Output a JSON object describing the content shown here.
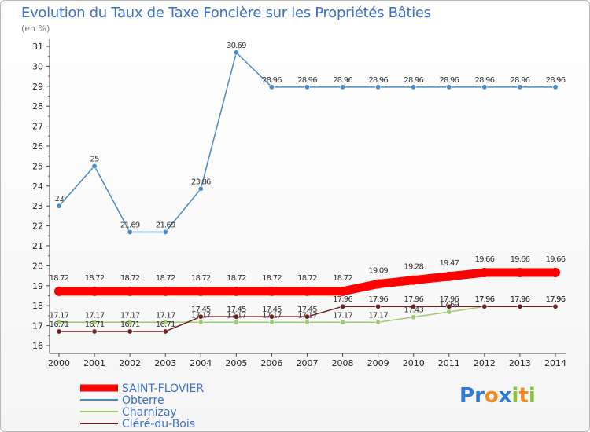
{
  "title": "Evolution du Taux de Taxe Foncière sur les Propriétés Bâties",
  "subtitle": "(en %)",
  "logo_letters": [
    "P",
    "r",
    "o",
    "x",
    "i",
    "t",
    "i"
  ],
  "logo_colors": [
    "#2f7ad1",
    "#2f7ad1",
    "#f08a24",
    "#2f7ad1",
    "#8ac43f",
    "#f08a24",
    "#8ac43f"
  ],
  "chart_data": {
    "type": "line",
    "title": "Evolution du Taux de Taxe Foncière sur les Propriétés Bâties",
    "ylabel": "(en %)",
    "xlabel": "",
    "x": [
      "2000",
      "2001",
      "2002",
      "2003",
      "2004",
      "2005",
      "2006",
      "2007",
      "2008",
      "2009",
      "2010",
      "2011",
      "2012",
      "2013",
      "2014"
    ],
    "ylim": [
      16,
      31
    ],
    "yticks": [
      "16",
      "17",
      "18",
      "19",
      "20",
      "21",
      "22",
      "23",
      "24",
      "25",
      "26",
      "27",
      "28",
      "29",
      "30",
      "31"
    ],
    "series": [
      {
        "name": "SAINT-FLOVIER",
        "color": "#ff0000",
        "label_color": "#333333",
        "style": "thick",
        "values": [
          18.72,
          18.72,
          18.72,
          18.72,
          18.72,
          18.72,
          18.72,
          18.72,
          18.72,
          19.09,
          19.28,
          19.47,
          19.66,
          19.66,
          19.66
        ],
        "labels": [
          "18.72",
          "18.72",
          "18.72",
          "18.72",
          "18.72",
          "18.72",
          "18.72",
          "18.72",
          "18.72",
          "19.09",
          "19.28",
          "19.47",
          "19.66",
          "19.66",
          "19.66"
        ]
      },
      {
        "name": "Obterre",
        "color": "#4a8ac8",
        "label_color": "#333333",
        "style": "thin",
        "values": [
          23,
          25,
          21.69,
          21.69,
          23.86,
          30.69,
          28.96,
          28.96,
          28.96,
          28.96,
          28.96,
          28.96,
          28.96,
          28.96,
          28.96
        ],
        "labels": [
          "23",
          "25",
          "21.69",
          "21.69",
          "23.86",
          "30.69",
          "28.96",
          "28.96",
          "28.96",
          "28.96",
          "28.96",
          "28.96",
          "28.96",
          "28.96",
          "28.96"
        ]
      },
      {
        "name": "Charnizay",
        "color": "#9ccc6e",
        "label_color": "#333333",
        "style": "thin",
        "values": [
          17.17,
          17.17,
          17.17,
          17.17,
          17.17,
          17.17,
          17.17,
          17.17,
          17.17,
          17.17,
          17.43,
          17.69,
          17.96,
          17.96,
          17.96
        ],
        "labels": [
          "17.17",
          "17.17",
          "17.17",
          "17.17",
          "17.17",
          "17.17",
          "17.17",
          "17.17",
          "17.17",
          "17.17",
          "17.43",
          "17.69",
          "17.96",
          "17.96",
          "17.96"
        ]
      },
      {
        "name": "Cléré-du-Bois",
        "color": "#6b1f1f",
        "label_color": "#333333",
        "style": "thin",
        "values": [
          16.71,
          16.71,
          16.71,
          16.71,
          17.45,
          17.45,
          17.45,
          17.45,
          17.96,
          17.96,
          17.96,
          17.96,
          17.96,
          17.96,
          17.96
        ],
        "labels": [
          "16.71",
          "16.71",
          "16.71",
          "16.71",
          "17.45",
          "17.45",
          "17.45",
          "17.45",
          "17.96",
          "17.96",
          "17.96",
          "17.96",
          "17.96",
          "17.96",
          "17.96"
        ]
      }
    ],
    "legend_position": "bottom-left"
  }
}
